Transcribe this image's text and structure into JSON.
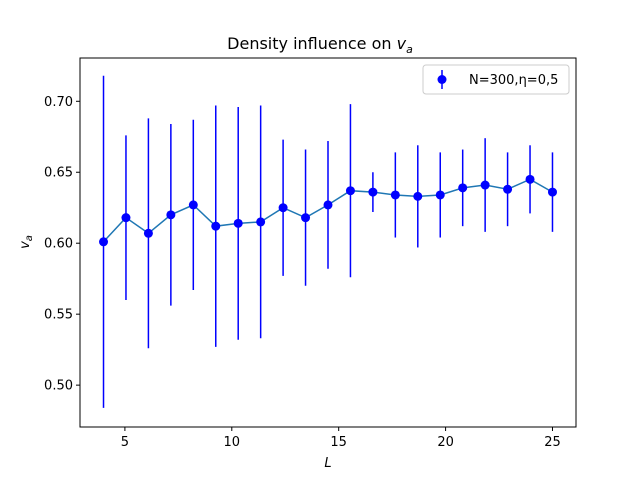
{
  "chart_data": {
    "type": "line",
    "title_main": "Density influence on ",
    "title_var": "v",
    "title_sub": "a",
    "xlabel": "L",
    "ylabel_var": "v",
    "ylabel_sub": "a",
    "xlim": [
      2.9,
      26.1
    ],
    "ylim": [
      0.4705,
      0.7305
    ],
    "xticks": [
      5,
      10,
      15,
      20,
      25
    ],
    "yticks": [
      0.5,
      0.55,
      0.6,
      0.65,
      0.7
    ],
    "xtick_labels": [
      "5",
      "10",
      "15",
      "20",
      "25"
    ],
    "ytick_labels": [
      "0.50",
      "0.55",
      "0.60",
      "0.65",
      "0.70"
    ],
    "legend": {
      "label": "N=300,η=0,5",
      "position": "top-right"
    },
    "line_color": "#1f77b4",
    "marker_color": "#0000ff",
    "series": [
      {
        "name": "N=300,η=0,5",
        "x": [
          4.0,
          5.05,
          6.1,
          7.15,
          8.2,
          9.25,
          10.3,
          11.35,
          12.4,
          13.45,
          14.5,
          15.55,
          16.6,
          17.65,
          18.7,
          19.75,
          20.8,
          21.85,
          22.9,
          23.95,
          25.0
        ],
        "y": [
          0.601,
          0.618,
          0.607,
          0.62,
          0.627,
          0.612,
          0.614,
          0.615,
          0.625,
          0.618,
          0.627,
          0.637,
          0.636,
          0.634,
          0.633,
          0.634,
          0.639,
          0.641,
          0.638,
          0.645,
          0.636
        ],
        "err": [
          0.117,
          0.058,
          0.081,
          0.064,
          0.06,
          0.085,
          0.082,
          0.082,
          0.048,
          0.048,
          0.045,
          0.061,
          0.014,
          0.03,
          0.036,
          0.03,
          0.027,
          0.033,
          0.026,
          0.024,
          0.028
        ]
      }
    ]
  }
}
